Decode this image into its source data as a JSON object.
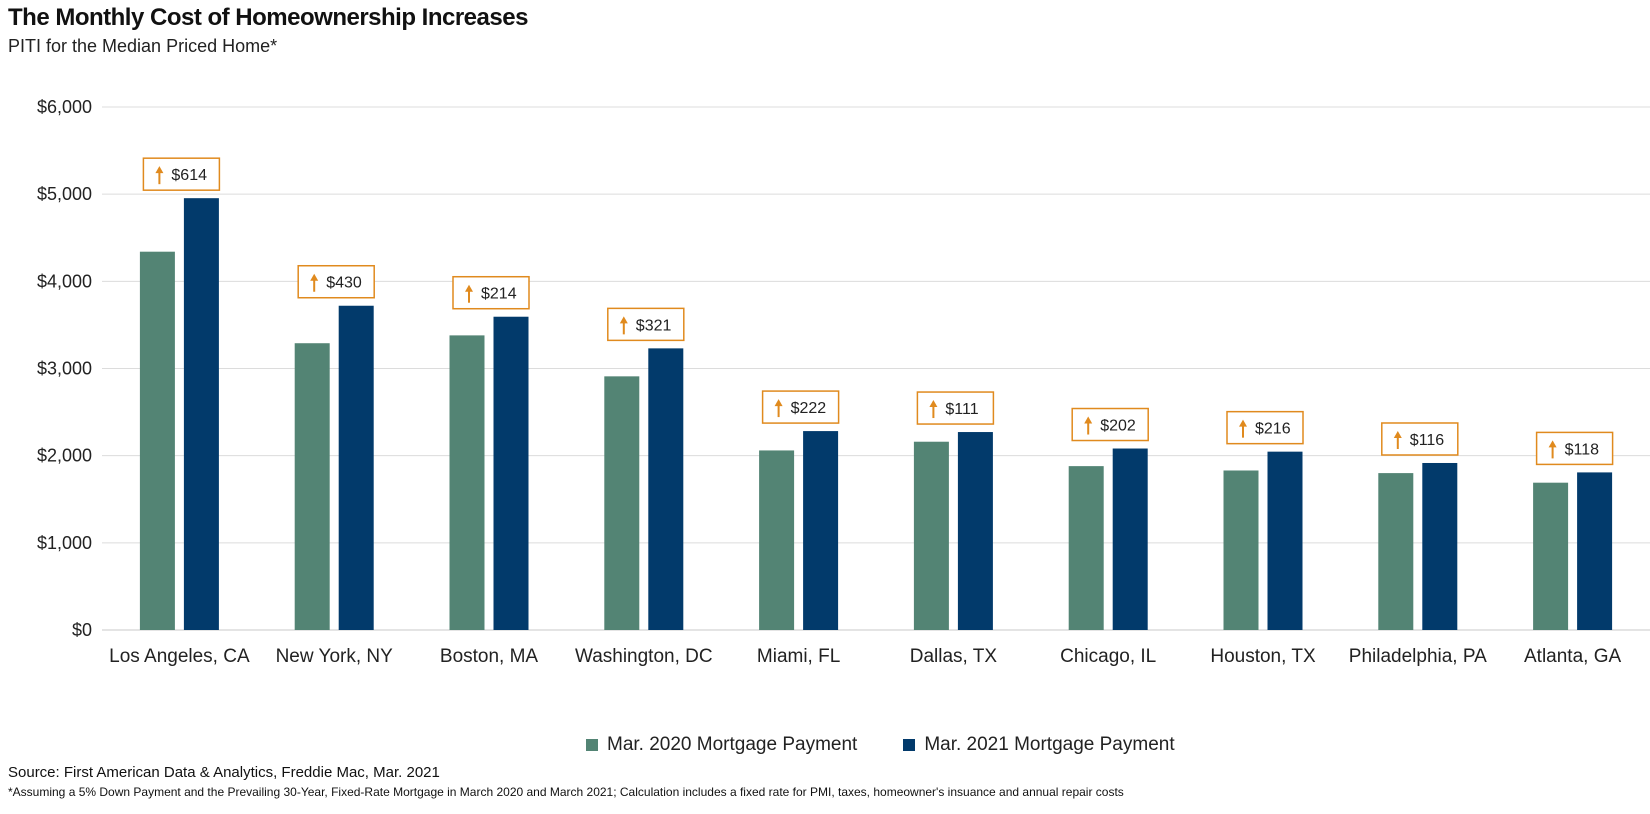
{
  "header": {
    "title": "The Monthly Cost of Homeownership Increases",
    "subtitle": "PITI for the Median Priced Home*"
  },
  "legend": {
    "items": [
      {
        "label": "Mar. 2020 Mortgage Payment",
        "color": "#538474"
      },
      {
        "label": "Mar. 2021 Mortgage Payment",
        "color": "#023a6b"
      }
    ]
  },
  "footer": {
    "source": "Source: First American Data & Analytics, Freddie Mac, Mar. 2021",
    "footnote": "*Assuming a 5% Down Payment and the Prevailing 30-Year, Fixed-Rate Mortgage in March 2020 and March 2021; Calculation includes a fixed rate for PMI, taxes, homeowner's insuance and annual repair costs"
  },
  "chart_data": {
    "type": "bar",
    "title": "The Monthly Cost of Homeownership Increases",
    "subtitle": "PITI for the Median Priced Home*",
    "categories": [
      "Los Angeles, CA",
      "New York, NY",
      "Boston, MA",
      "Washington, DC",
      "Miami, FL",
      "Dallas, TX",
      "Chicago, IL",
      "Houston, TX",
      "Philadelphia, PA",
      "Atlanta, GA"
    ],
    "series": [
      {
        "name": "Mar. 2020 Mortgage Payment",
        "color": "#538474",
        "values": [
          4340,
          3290,
          3380,
          2910,
          2060,
          2160,
          1880,
          1830,
          1800,
          1690
        ]
      },
      {
        "name": "Mar. 2021 Mortgage Payment",
        "color": "#023a6b",
        "values": [
          4954,
          3720,
          3594,
          3231,
          2282,
          2271,
          2082,
          2046,
          1916,
          1808
        ]
      }
    ],
    "annotations": [
      "$614",
      "$430",
      "$214",
      "$321",
      "$222",
      "$111",
      "$202",
      "$216",
      "$116",
      "$118"
    ],
    "annotation_color": "#e08a1e",
    "ylim": [
      0,
      6000
    ],
    "yticks": [
      0,
      1000,
      2000,
      3000,
      4000,
      5000,
      6000
    ],
    "ytick_labels": [
      "$0",
      "$1,000",
      "$2,000",
      "$3,000",
      "$4,000",
      "$5,000",
      "$6,000"
    ],
    "xlabel": "",
    "ylabel": "",
    "grid": true,
    "legend_position": "bottom"
  }
}
